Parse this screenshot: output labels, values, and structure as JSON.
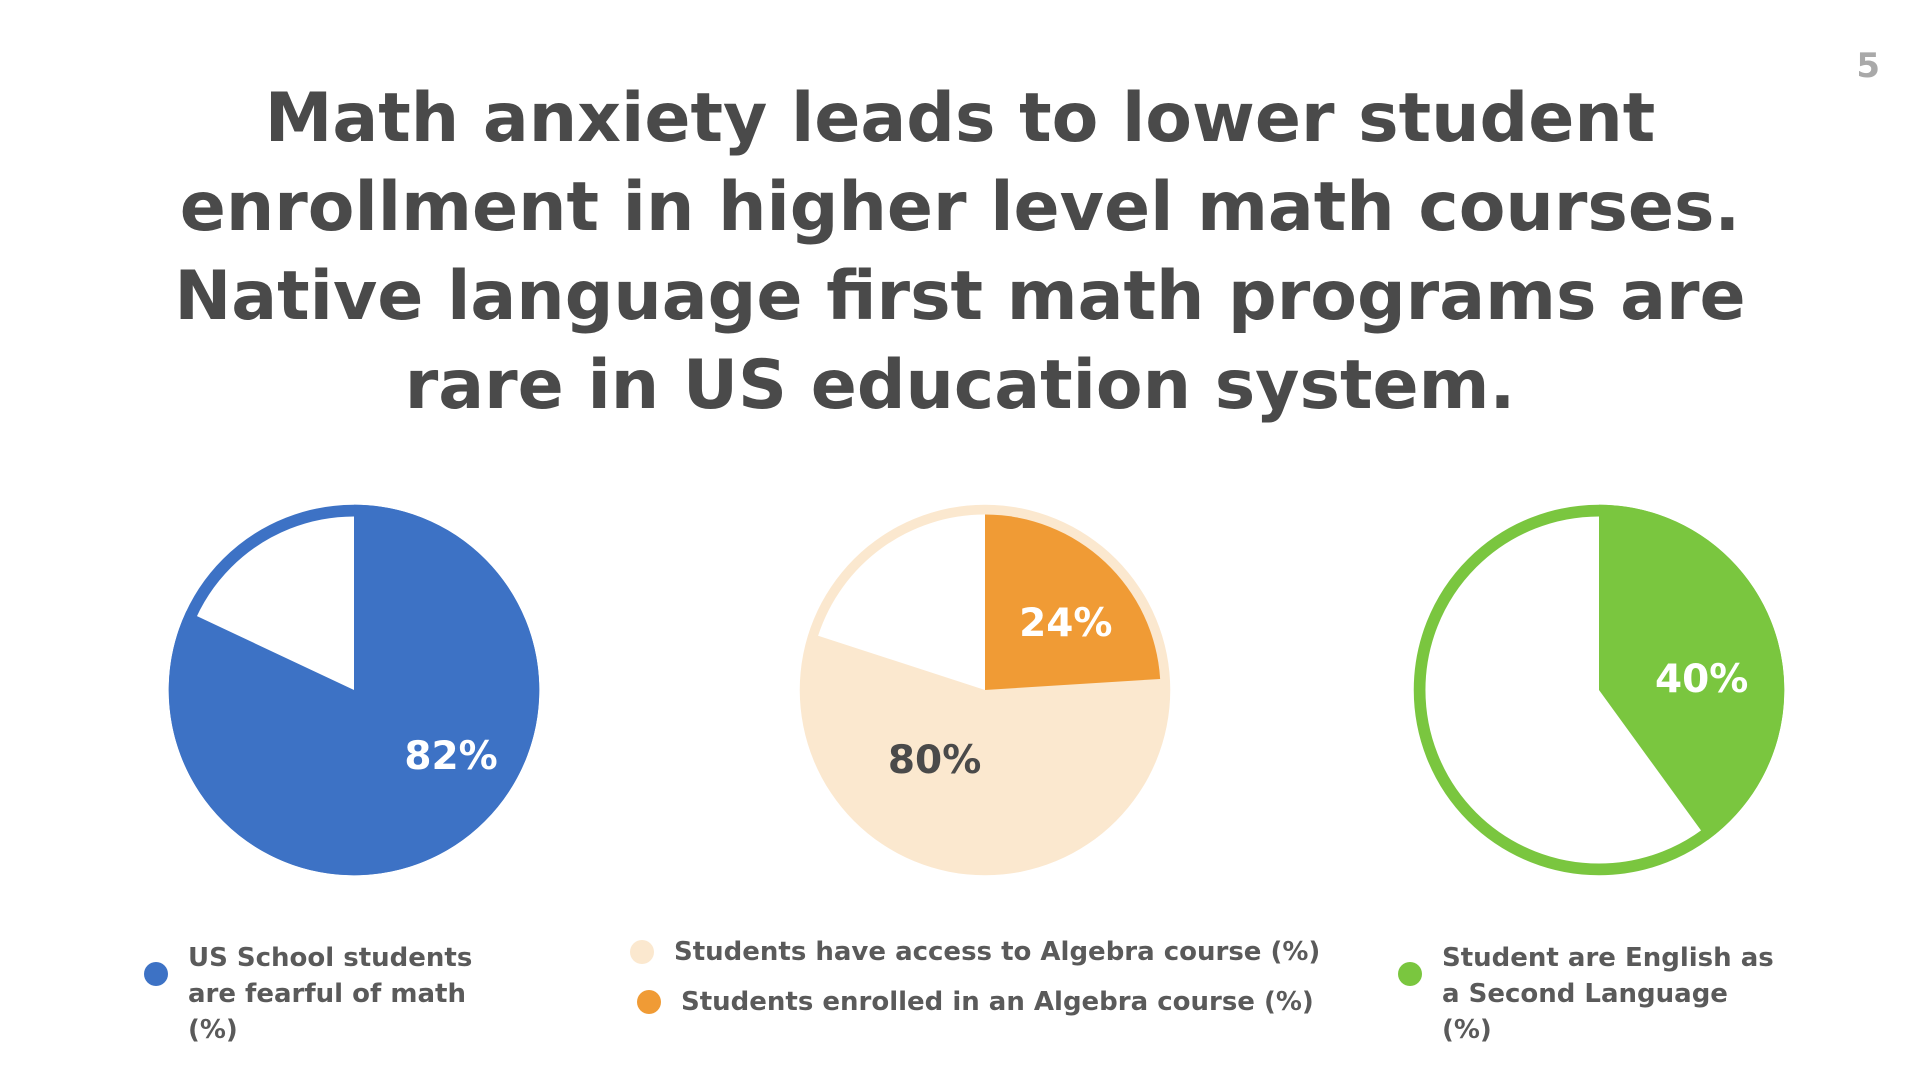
{
  "page_number": "5",
  "title_lines": [
    "Math anxiety leads to lower student",
    "enrollment in higher level math courses.",
    "Native language first math programs are",
    "rare in US education system."
  ],
  "colors": {
    "blue": "#3d72c5",
    "light_orange": "#fbe8cf",
    "orange": "#f09b35",
    "green": "#7ac63f",
    "dark_text": "#4a4a4a",
    "white": "#ffffff"
  },
  "chart_data": [
    {
      "type": "pie",
      "series": [
        {
          "name": "US School students are fearful of math (%)",
          "value": 82,
          "label": "82%",
          "color": "#3d72c5"
        }
      ]
    },
    {
      "type": "pie",
      "series": [
        {
          "name": "Students have access to Algebra course (%)",
          "value": 80,
          "label": "80%",
          "color": "#fbe8cf"
        },
        {
          "name": "Students enrolled in an Algebra course (%)",
          "value": 24,
          "label": "24%",
          "color": "#f09b35"
        }
      ]
    },
    {
      "type": "pie",
      "series": [
        {
          "name": "Student are English as a Second Language (%)",
          "value": 40,
          "label": "40%",
          "color": "#7ac63f"
        }
      ]
    }
  ],
  "legend": {
    "chart1": "US School students are fearful of math (%)",
    "chart2_access": "Students have access to Algebra course (%)",
    "chart2_enrolled": "Students enrolled in an Algebra course (%)",
    "chart3": "Student are English as a Second Language (%)"
  }
}
